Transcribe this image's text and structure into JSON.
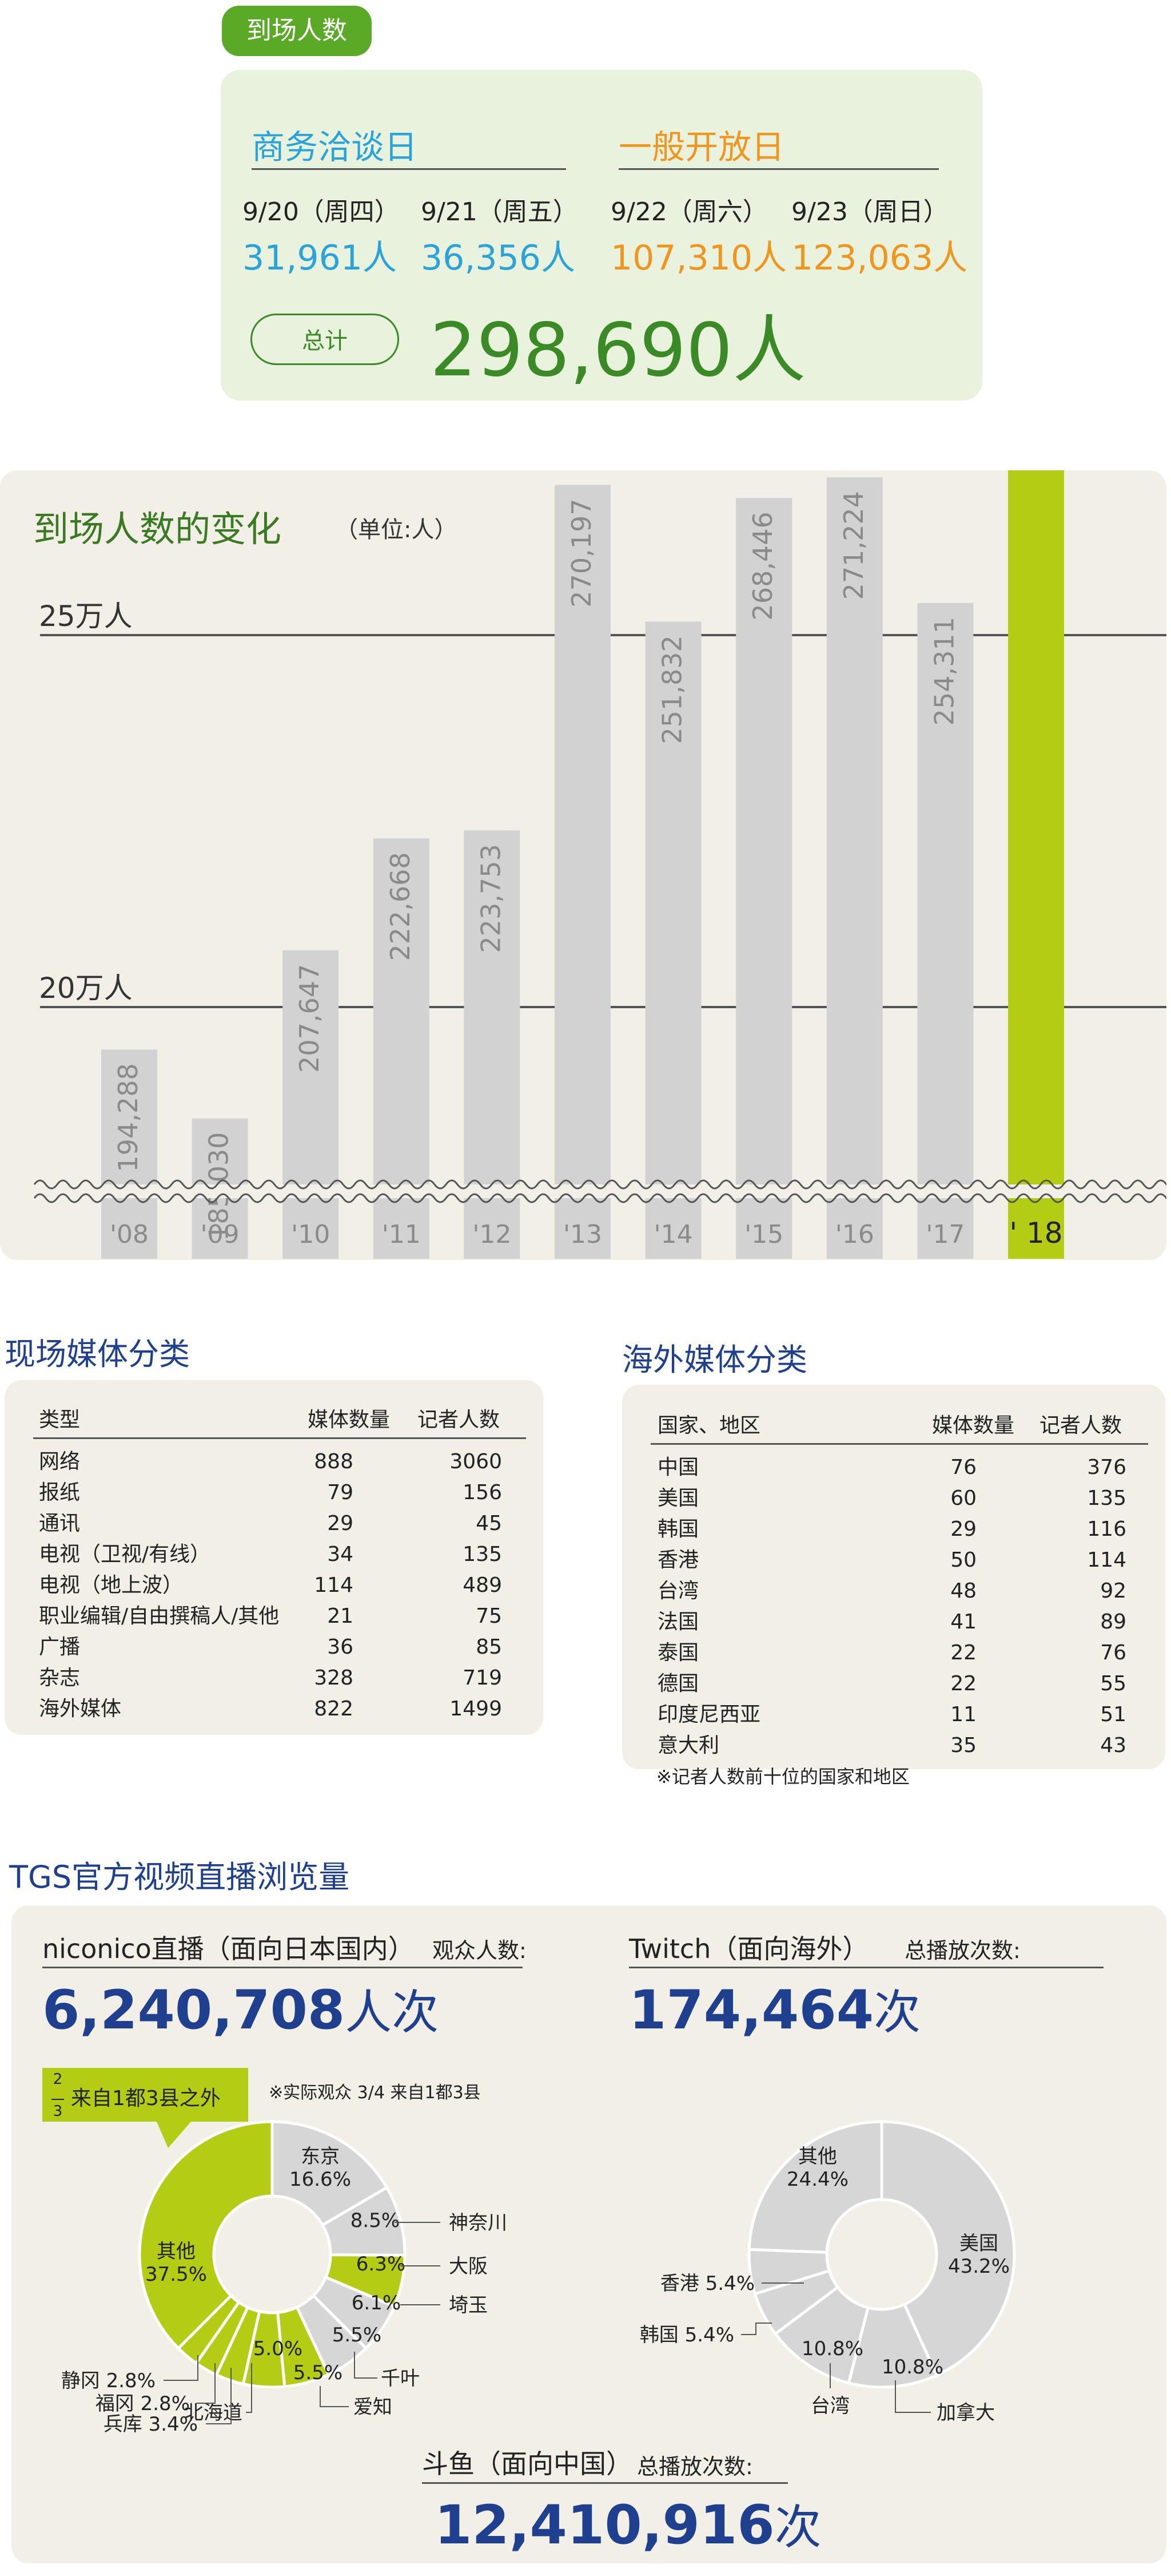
{
  "attendance": {
    "header": "到场人数",
    "business_label": "商务洽谈日",
    "general_label": "一般开放日",
    "days": [
      {
        "date": "9/20（周四）",
        "count": "31,961人"
      },
      {
        "date": "9/21（周五）",
        "count": "36,356人"
      },
      {
        "date": "9/22（周六）",
        "count": "107,310人"
      },
      {
        "date": "9/23（周日）",
        "count": "123,063人"
      }
    ],
    "total_label": "总计",
    "total_value": "298,690人"
  },
  "chart_data": {
    "type": "bar",
    "title": "到场人数的变化",
    "unit": "（单位:人）",
    "categories": [
      "'08",
      "'09",
      "'10",
      "'11",
      "'12",
      "'13",
      "'14",
      "'15",
      "'16",
      "'17",
      "' 18"
    ],
    "values": [
      194288,
      185030,
      207647,
      222668,
      223753,
      270197,
      251832,
      268446,
      271224,
      254311,
      298690
    ],
    "value_labels": [
      "194,288",
      "185,030",
      "207,647",
      "222,668",
      "223,753",
      "270,197",
      "251,832",
      "268,446",
      "271,224",
      "254,311",
      "298,690"
    ],
    "gridlines": [
      {
        "value": 200000,
        "label": "20万人"
      },
      {
        "value": 250000,
        "label": "25万人"
      }
    ],
    "axis_break": true,
    "highlight_index": 10,
    "colors": {
      "bar": "#d2d2d2",
      "highlight": "#b4cc14",
      "label": "#8a8a8a"
    }
  },
  "onsite_media": {
    "title": "现场媒体分类",
    "headers": [
      "类型",
      "媒体数量",
      "记者人数"
    ],
    "rows": [
      [
        "网络",
        "888",
        "3060"
      ],
      [
        "报纸",
        "79",
        "156"
      ],
      [
        "通讯",
        "29",
        "45"
      ],
      [
        "电视（卫视/有线）",
        "34",
        "135"
      ],
      [
        "电视（地上波）",
        "114",
        "489"
      ],
      [
        "职业编辑/自由撰稿人/其他",
        "21",
        "75"
      ],
      [
        "广播",
        "36",
        "85"
      ],
      [
        "杂志",
        "328",
        "719"
      ],
      [
        "海外媒体",
        "822",
        "1499"
      ]
    ]
  },
  "overseas_media": {
    "title": "海外媒体分类",
    "headers": [
      "国家、地区",
      "媒体数量",
      "记者人数"
    ],
    "rows": [
      [
        "中国",
        "76",
        "376"
      ],
      [
        "美国",
        "60",
        "135"
      ],
      [
        "韩国",
        "29",
        "116"
      ],
      [
        "香港",
        "50",
        "114"
      ],
      [
        "台湾",
        "48",
        "92"
      ],
      [
        "法国",
        "41",
        "89"
      ],
      [
        "泰国",
        "22",
        "76"
      ],
      [
        "德国",
        "22",
        "55"
      ],
      [
        "印度尼西亚",
        "11",
        "51"
      ],
      [
        "意大利",
        "35",
        "43"
      ]
    ],
    "footnote": "※记者人数前十位的国家和地区"
  },
  "live": {
    "title": "TGS官方视频直播浏览量",
    "niconico": {
      "label": "niconico直播（面向日本国内）",
      "sub": "观众人数:",
      "value": "6,240,708",
      "unit": "人次",
      "callout": "来自1都3县之外",
      "callout_frac": "2/3",
      "note": "※实际观众 3/4 来自1都3县",
      "slices": [
        {
          "name": "东京",
          "value": 16.6,
          "label": "东京\n16.6%",
          "color": "#d6d6d6"
        },
        {
          "name": "神奈川",
          "value": 8.5,
          "label": "8.5%",
          "color": "#d6d6d6"
        },
        {
          "name": "大阪",
          "value": 6.3,
          "label": "6.3%",
          "color": "#b4cc14"
        },
        {
          "name": "埼玉",
          "value": 6.1,
          "label": "6.1%",
          "color": "#d6d6d6"
        },
        {
          "name": "千叶",
          "value": 5.5,
          "label": "5.5%",
          "color": "#d6d6d6"
        },
        {
          "name": "爱知",
          "value": 5.5,
          "label": "5.5%",
          "color": "#b4cc14"
        },
        {
          "name": "北海道",
          "value": 5.0,
          "label": "5.0%",
          "color": "#b4cc14"
        },
        {
          "name": "兵库",
          "value": 3.4,
          "label": "兵库 3.4%",
          "color": "#b4cc14"
        },
        {
          "name": "福冈",
          "value": 2.8,
          "label": "福冈 2.8%",
          "color": "#b4cc14"
        },
        {
          "name": "静冈",
          "value": 2.8,
          "label": "静冈 2.8%",
          "color": "#b4cc14"
        },
        {
          "name": "其他",
          "value": 37.5,
          "label": "其他\n37.5%",
          "color": "#b4cc14"
        }
      ]
    },
    "twitch": {
      "label": "Twitch（面向海外）",
      "sub": "总播放次数:",
      "value": "174,464",
      "unit": "次",
      "slices": [
        {
          "name": "美国",
          "value": 43.2,
          "color": "#d6d6d6"
        },
        {
          "name": "加拿大",
          "value": 10.8,
          "color": "#d6d6d6"
        },
        {
          "name": "台湾",
          "value": 10.8,
          "color": "#d6d6d6"
        },
        {
          "name": "韩国",
          "value": 5.4,
          "color": "#d6d6d6"
        },
        {
          "name": "香港",
          "value": 5.4,
          "color": "#d6d6d6"
        },
        {
          "name": "其他",
          "value": 24.4,
          "color": "#d6d6d6"
        }
      ]
    },
    "douyu": {
      "label": "斗鱼（面向中国）",
      "sub": "总播放次数:",
      "value": "12,410,916",
      "unit": "次"
    }
  }
}
